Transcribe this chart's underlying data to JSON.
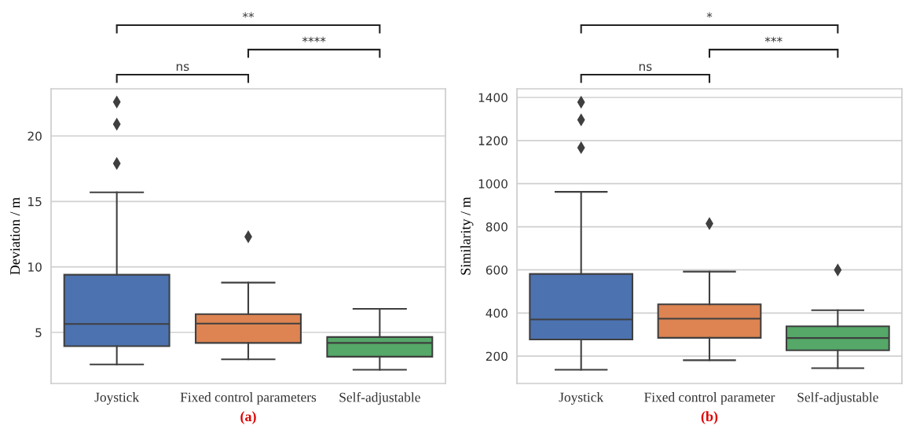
{
  "chart_data": [
    {
      "type": "box",
      "ylabel": "Deviation / m",
      "xlabel": "(a)",
      "categories": [
        "Joystick",
        "Fixed control parameters",
        "Self-adjustable"
      ],
      "colors": [
        "#4c72b0",
        "#dd8452",
        "#55a868"
      ],
      "ylim": [
        1.1,
        23.6
      ],
      "yticks": [
        5,
        10,
        15,
        20
      ],
      "grid": "y",
      "marker": "diamond",
      "boxes": [
        {
          "low": 2.55,
          "q1": 3.95,
          "median": 5.65,
          "q3": 9.4,
          "high": 15.7,
          "outliers": [
            17.9,
            20.9,
            22.6
          ]
        },
        {
          "low": 2.95,
          "q1": 4.2,
          "median": 5.67,
          "q3": 6.4,
          "high": 8.8,
          "outliers": [
            12.3
          ]
        },
        {
          "low": 2.15,
          "q1": 3.15,
          "median": 4.2,
          "q3": 4.65,
          "high": 6.8
        }
      ],
      "annotations": [
        "**",
        "****",
        "ns"
      ]
    },
    {
      "type": "box",
      "ylabel": "Similarity / m",
      "xlabel": "(b)",
      "categories": [
        "Joystick",
        "Fixed control parameter",
        "Self-adjustable"
      ],
      "colors": [
        "#4c72b0",
        "#dd8452",
        "#55a868"
      ],
      "ylim": [
        73,
        1440
      ],
      "yticks": [
        200,
        400,
        600,
        800,
        1000,
        1200,
        1400
      ],
      "grid": "y",
      "marker": "diamond",
      "boxes": [
        {
          "low": 137,
          "q1": 277,
          "median": 370,
          "q3": 581,
          "high": 962,
          "outliers": [
            1167,
            1296,
            1378
          ]
        },
        {
          "low": 181,
          "q1": 285,
          "median": 374,
          "q3": 440,
          "high": 592,
          "outliers": [
            815
          ]
        },
        {
          "low": 144,
          "q1": 227,
          "median": 284,
          "q3": 338,
          "high": 413,
          "outliers": [
            600
          ]
        }
      ],
      "annotations": [
        "*",
        "***",
        "ns"
      ]
    }
  ]
}
